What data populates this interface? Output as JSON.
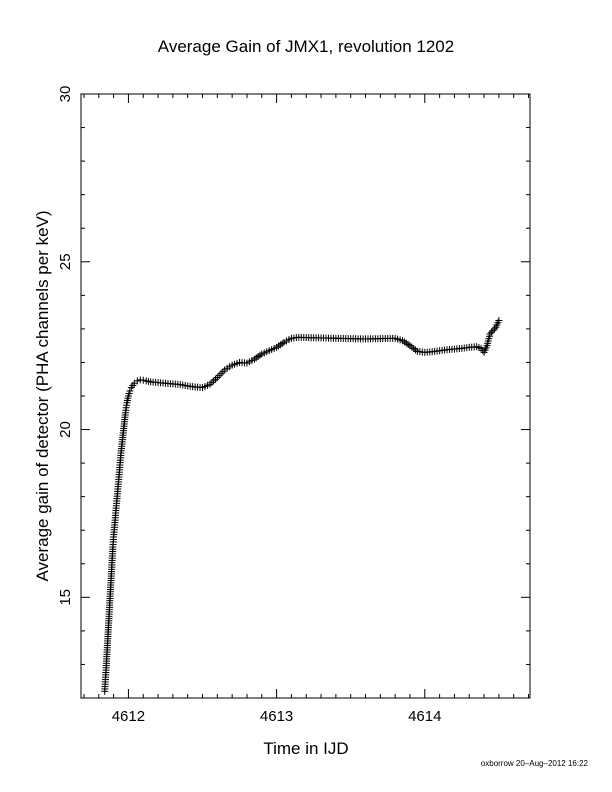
{
  "chart_data": {
    "type": "scatter",
    "title": "Average Gain of JMX1, revolution 1202",
    "xlabel": "Time in IJD",
    "ylabel": "Average gain of detector (PHA channels per keV)",
    "footer": "oxborrow 20–Aug–2012 16:22",
    "xlim": [
      4611.68,
      4614.71
    ],
    "ylim": [
      12.0,
      30.0
    ],
    "x_ticks": [
      4612,
      4613,
      4614
    ],
    "y_ticks": [
      15,
      20,
      25,
      30
    ],
    "grid": false,
    "marker": "plus",
    "series": [
      {
        "x": [
          4611.84,
          4611.85,
          4611.855,
          4611.86,
          4611.865,
          4611.87,
          4611.875,
          4611.88,
          4611.885,
          4611.89,
          4611.895,
          4611.9,
          4611.91,
          4611.92,
          4611.93,
          4611.94,
          4611.95,
          4611.96,
          4611.97,
          4611.98,
          4611.99,
          4612.0,
          4612.01,
          4612.02,
          4612.04,
          4612.06,
          4612.08,
          4612.1,
          4612.12,
          4612.15,
          4612.2,
          4612.25,
          4612.3,
          4612.35,
          4612.4,
          4612.45,
          4612.5,
          4612.55,
          4612.6,
          4612.65,
          4612.7,
          4612.75,
          4612.8,
          4612.85,
          4612.9,
          4612.95,
          4613.0,
          4613.05,
          4613.1,
          4613.15,
          4613.2,
          4613.3,
          4613.4,
          4613.5,
          4613.6,
          4613.7,
          4613.8,
          4613.85,
          4613.9,
          4613.95,
          4614.0,
          4614.05,
          4614.1,
          4614.15,
          4614.2,
          4614.25,
          4614.3,
          4614.35,
          4614.38,
          4614.4,
          4614.42,
          4614.44,
          4614.46,
          4614.48,
          4614.5
        ],
        "y": [
          12.2,
          12.9,
          13.3,
          13.7,
          14.1,
          14.5,
          14.9,
          15.3,
          15.7,
          16.1,
          16.5,
          16.8,
          17.3,
          17.8,
          18.3,
          18.8,
          19.3,
          19.7,
          20.1,
          20.5,
          20.8,
          21.0,
          21.15,
          21.25,
          21.38,
          21.45,
          21.48,
          21.47,
          21.45,
          21.42,
          21.4,
          21.38,
          21.36,
          21.34,
          21.3,
          21.27,
          21.25,
          21.35,
          21.55,
          21.78,
          21.92,
          22.0,
          21.98,
          22.1,
          22.25,
          22.35,
          22.45,
          22.6,
          22.72,
          22.75,
          22.74,
          22.73,
          22.72,
          22.71,
          22.7,
          22.71,
          22.72,
          22.65,
          22.5,
          22.33,
          22.3,
          22.32,
          22.35,
          22.38,
          22.4,
          22.42,
          22.45,
          22.47,
          22.42,
          22.3,
          22.5,
          22.85,
          22.95,
          23.05,
          23.25
        ]
      }
    ]
  }
}
